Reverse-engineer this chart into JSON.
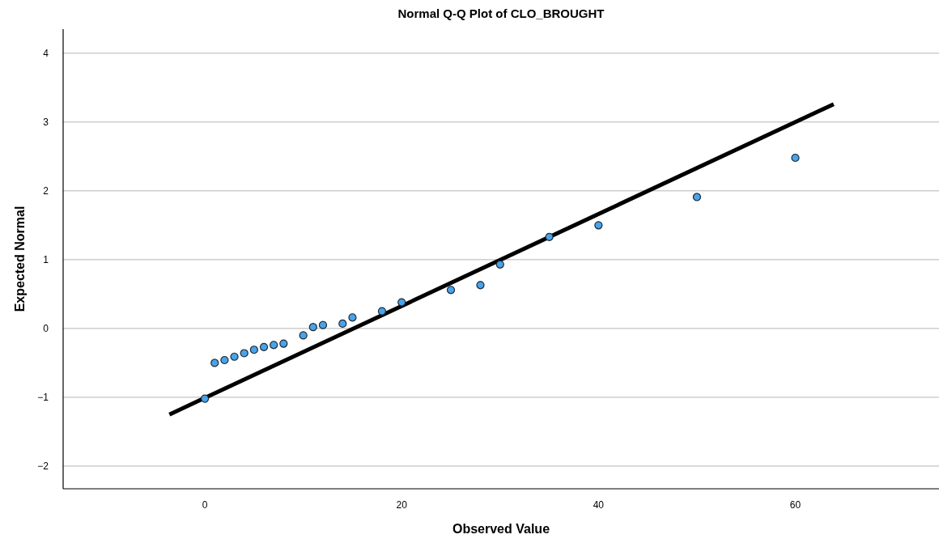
{
  "chart_data": {
    "type": "scatter",
    "title": "Normal Q-Q Plot of CLO_BROUGHT",
    "xlabel": "Observed Value",
    "ylabel": "Expected Normal",
    "xlim": [
      -14.4,
      74.6
    ],
    "xticks": [
      0,
      20,
      40,
      60
    ],
    "ylim": [
      -2.33,
      4.35
    ],
    "yticks": [
      -2,
      -1,
      0,
      1,
      2,
      3,
      4
    ],
    "grid": "y",
    "series": [
      {
        "marker": "circle",
        "color": "#4aa3e8",
        "x": [
          0,
          1,
          2,
          3,
          4,
          5,
          6,
          7,
          8,
          10,
          11,
          12,
          14,
          15,
          18,
          20,
          25,
          28,
          30,
          35,
          40,
          50,
          60
        ],
        "values": [
          -1.02,
          -0.5,
          -0.46,
          -0.41,
          -0.36,
          -0.31,
          -0.27,
          -0.24,
          -0.22,
          -0.1,
          0.02,
          0.05,
          0.07,
          0.16,
          0.25,
          0.38,
          0.56,
          0.63,
          0.93,
          1.33,
          1.5,
          1.91,
          2.48
        ]
      },
      {
        "type": "line",
        "color": "#000000",
        "x": [
          -3.6,
          63.9
        ],
        "values": [
          -1.25,
          3.26
        ]
      }
    ]
  }
}
